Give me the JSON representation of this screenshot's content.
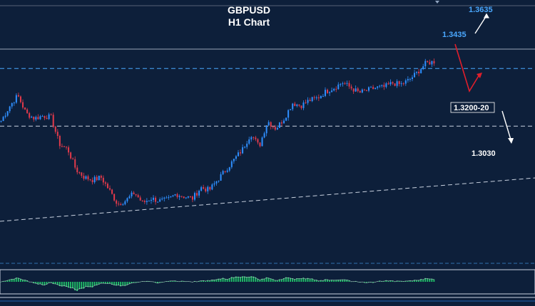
{
  "chart_data": {
    "type": "candlestick",
    "title": "GBPUSD",
    "subtitle": "H1 Chart",
    "colors": {
      "background": "#0d1f3a",
      "bull": "#2f8fff",
      "bear": "#e23a4b",
      "annotation_blue": "#4aa8ff",
      "arrow_red": "#e01e2b",
      "arrow_white": "#ffffff",
      "histogram": "#22c46a"
    },
    "y_range": [
      1.268,
      1.368
    ],
    "levels": [
      {
        "label": "1.3635",
        "value": 1.3635,
        "style": "text",
        "color": "#4aa8ff"
      },
      {
        "label": "1.3435",
        "value": 1.3435,
        "style": "dashed",
        "color": "#4aa8ff"
      },
      {
        "label": "1.3200-20",
        "value": 1.321,
        "style": "dashed",
        "color": "#ffffff",
        "boxed": true
      },
      {
        "label": "1.3030",
        "value": 1.303,
        "style": "text",
        "color": "#ffffff"
      }
    ],
    "price_path": [
      1.323,
      1.3286,
      1.333,
      1.326,
      1.324,
      1.325,
      1.3245,
      1.314,
      1.312,
      1.304,
      1.301,
      1.3,
      1.301,
      1.296,
      1.2905,
      1.292,
      1.295,
      1.291,
      1.2928,
      1.2918,
      1.2922,
      1.2945,
      1.2935,
      1.2928,
      1.297,
      1.296,
      1.3,
      1.304,
      1.308,
      1.312,
      1.318,
      1.313,
      1.323,
      1.32,
      1.324,
      1.33,
      1.329,
      1.331,
      1.332,
      1.3345,
      1.336,
      1.338,
      1.336,
      1.334,
      1.335,
      1.336,
      1.3362,
      1.3378,
      1.3372,
      1.339,
      1.342,
      1.3455,
      1.3462
    ]
  }
}
